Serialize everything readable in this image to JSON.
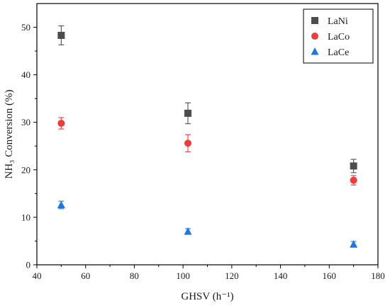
{
  "chart_data": {
    "type": "scatter",
    "title": "",
    "xlabel": "GHSV (h⁻¹)",
    "ylabel": "NH₃ Conversion (%)",
    "xlim": [
      40,
      180
    ],
    "ylim": [
      0,
      55
    ],
    "xticks": [
      40,
      60,
      80,
      100,
      120,
      140,
      160,
      180
    ],
    "yticks": [
      0,
      10,
      20,
      30,
      40,
      50
    ],
    "grid": false,
    "legend_position": "top-right",
    "series": [
      {
        "name": "LaNi",
        "marker": "square",
        "color": "#4d4d4d",
        "x": [
          50,
          102,
          170
        ],
        "y": [
          48.3,
          31.9,
          20.8
        ],
        "err": [
          2.0,
          2.2,
          1.4
        ]
      },
      {
        "name": "LaCo",
        "marker": "circle",
        "color": "#ee3b3b",
        "x": [
          50,
          102,
          170
        ],
        "y": [
          29.8,
          25.6,
          17.8
        ],
        "err": [
          1.2,
          1.8,
          1.0
        ]
      },
      {
        "name": "LaCe",
        "marker": "triangle",
        "color": "#1f77e0",
        "x": [
          50,
          102,
          170
        ],
        "y": [
          12.6,
          7.0,
          4.3
        ],
        "err": [
          0.8,
          0.6,
          0.6
        ]
      }
    ]
  }
}
